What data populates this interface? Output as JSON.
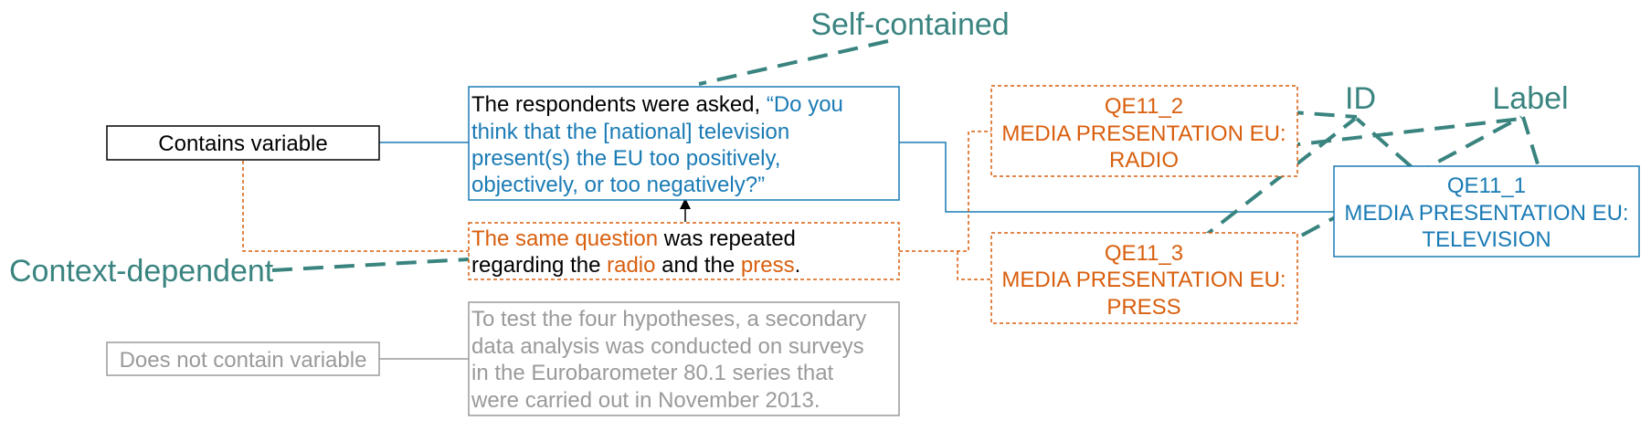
{
  "colors": {
    "teal": "#3a8480",
    "blue": "#1a7bb5",
    "orange": "#d95f0e",
    "gray": "#9a9a9a",
    "black": "#000000"
  },
  "annotations": {
    "self_contained": "Self-contained",
    "context_dependent": "Context-dependent",
    "id": "ID",
    "label": "Label"
  },
  "left_labels": {
    "contains": "Contains variable",
    "not_contains": "Does not contain variable"
  },
  "sentences": {
    "question": {
      "line1_plain": "The respondents were asked, ",
      "line1_quote": "“Do you",
      "line2": "think that the [national] television",
      "line3": "present(s) the EU too positively,",
      "line4": "objectively, or too negatively?”"
    },
    "repeat": {
      "l1_part1": "The same question",
      "l1_part2": " was repeated",
      "l2_part1": "regarding the ",
      "l2_part2": "radio",
      "l2_part3": " and the ",
      "l2_part4": "press",
      "l2_part5": "."
    },
    "method": {
      "line1": "To test the four hypotheses, a secondary",
      "line2": "data analysis was conducted on surveys",
      "line3": "in the Eurobarometer 80.1 series that",
      "line4": "were carried out in November 2013."
    }
  },
  "variables": {
    "radio": {
      "id": "QE11_2",
      "label1": "MEDIA PRESENTATION EU:",
      "label2": "RADIO"
    },
    "press": {
      "id": "QE11_3",
      "label1": "MEDIA PRESENTATION EU:",
      "label2": "PRESS"
    },
    "tv": {
      "id": "QE11_1",
      "label1": "MEDIA PRESENTATION EU:",
      "label2": "TELEVISION"
    }
  }
}
